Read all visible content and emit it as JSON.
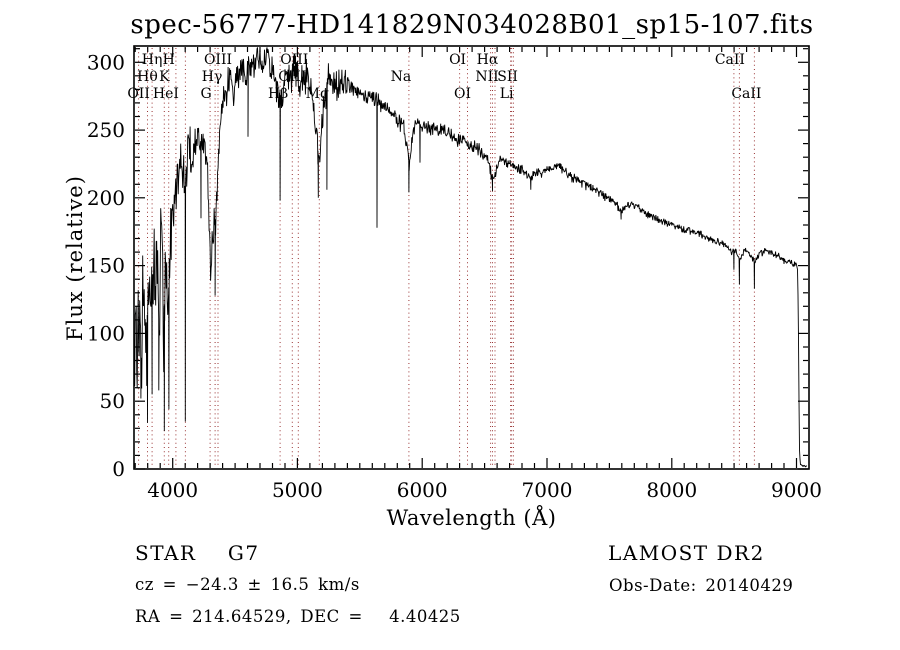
{
  "header": {
    "title": "spec-56777-HD141829N034028B01_sp15-107.fits"
  },
  "footer": {
    "object_type": "STAR",
    "subclass": "G7",
    "type_line": "STAR    G7",
    "cz_line": "cz = −24.3 ± 16.5 km/s",
    "radec_line": "RA = 214.64529, DEC =   4.40425",
    "survey_line": "LAMOST DR2",
    "obsdate_line": "Obs-Date: 20140429"
  },
  "chart_data": {
    "type": "line",
    "title": "spec-56777-HD141829N034028B01_sp15-107.fits",
    "xlabel": "Wavelength (Å)",
    "ylabel": "Flux (relative)",
    "xlim": [
      3690,
      9100
    ],
    "ylim": [
      0,
      312
    ],
    "x_major_ticks": [
      4000,
      5000,
      6000,
      7000,
      8000,
      9000
    ],
    "x_minor_step": 100,
    "y_major_ticks": [
      0,
      50,
      100,
      150,
      200,
      250,
      300
    ],
    "y_minor_step": 10,
    "grid": false,
    "legend": "none",
    "line_color": "#000000",
    "marker_color": "#993333",
    "label_rows_y": [
      64,
      81,
      98
    ],
    "spectral_lines": [
      {
        "label": "OII",
        "wl": 3727,
        "row": 3
      },
      {
        "label": "Hθ",
        "wl": 3798,
        "row": 2
      },
      {
        "label": "Hη",
        "wl": 3835,
        "row": 1
      },
      {
        "label": "K",
        "wl": 3933,
        "row": 2
      },
      {
        "label": "H",
        "wl": 3968,
        "row": 1
      },
      {
        "label": "HeI",
        "wl": 4026,
        "row": 3,
        "dx": -10
      },
      {
        "label": "",
        "wl": 4102,
        "row": 1
      },
      {
        "label": "G",
        "wl": 4300,
        "row": 3,
        "dx": -4
      },
      {
        "label": "Hγ",
        "wl": 4340,
        "row": 2,
        "dx": -3
      },
      {
        "label": "OIII",
        "wl": 4363,
        "row": 1
      },
      {
        "label": "Hβ",
        "wl": 4861,
        "row": 3,
        "dx": -2
      },
      {
        "label": "OIII",
        "wl": 4959,
        "row": 2
      },
      {
        "label": "OIII",
        "wl": 5007,
        "row": 1,
        "dx": -4
      },
      {
        "label": "Mg",
        "wl": 5175,
        "row": 3,
        "dx": -2
      },
      {
        "label": "Na",
        "wl": 5893,
        "row": 2,
        "dx": -8
      },
      {
        "label": "OI",
        "wl": 6300,
        "row": 1,
        "dx": -2
      },
      {
        "label": "OI",
        "wl": 6363,
        "row": 3,
        "dx": -5
      },
      {
        "label": "",
        "wl": 6548,
        "row": 2
      },
      {
        "label": "Hα",
        "wl": 6563,
        "row": 1,
        "dx": -5
      },
      {
        "label": "NII",
        "wl": 6583,
        "row": 2,
        "dx": -8
      },
      {
        "label": "Li",
        "wl": 6708,
        "row": 3,
        "dx": -4
      },
      {
        "label": "SII",
        "wl": 6716,
        "row": 2,
        "dx": -4
      },
      {
        "label": "",
        "wl": 6731,
        "row": 2
      },
      {
        "label": "CaII",
        "wl": 8498,
        "row": 1,
        "dx": -4
      },
      {
        "label": "",
        "wl": 8542,
        "row": 1
      },
      {
        "label": "CaII",
        "wl": 8662,
        "row": 3,
        "dx": -8
      }
    ],
    "envelope": [
      [
        3690,
        148
      ],
      [
        3698,
        70
      ],
      [
        3706,
        122
      ],
      [
        3714,
        55
      ],
      [
        3722,
        135
      ],
      [
        3730,
        85
      ],
      [
        3740,
        118
      ],
      [
        3750,
        68
      ],
      [
        3760,
        142
      ],
      [
        3770,
        95
      ],
      [
        3780,
        128
      ],
      [
        3790,
        82
      ],
      [
        3800,
        118
      ],
      [
        3810,
        148
      ],
      [
        3820,
        100
      ],
      [
        3830,
        138
      ],
      [
        3842,
        112
      ],
      [
        3852,
        158
      ],
      [
        3862,
        120
      ],
      [
        3872,
        168
      ],
      [
        3882,
        130
      ],
      [
        3892,
        100
      ],
      [
        3902,
        158
      ],
      [
        3912,
        178
      ],
      [
        3922,
        120
      ],
      [
        3930,
        92
      ],
      [
        3940,
        148
      ],
      [
        3950,
        128
      ],
      [
        3960,
        112
      ],
      [
        3972,
        140
      ],
      [
        3982,
        165
      ],
      [
        3992,
        198
      ],
      [
        4002,
        188
      ],
      [
        4020,
        205
      ],
      [
        4040,
        215
      ],
      [
        4060,
        228
      ],
      [
        4080,
        222
      ],
      [
        4100,
        208
      ],
      [
        4120,
        232
      ],
      [
        4140,
        238
      ],
      [
        4160,
        232
      ],
      [
        4180,
        242
      ],
      [
        4200,
        248
      ],
      [
        4220,
        240
      ],
      [
        4240,
        246
      ],
      [
        4260,
        238
      ],
      [
        4280,
        220
      ],
      [
        4295,
        175
      ],
      [
        4305,
        142
      ],
      [
        4315,
        165
      ],
      [
        4330,
        185
      ],
      [
        4345,
        175
      ],
      [
        4360,
        215
      ],
      [
        4380,
        252
      ],
      [
        4400,
        268
      ],
      [
        4430,
        280
      ],
      [
        4460,
        288
      ],
      [
        4490,
        282
      ],
      [
        4520,
        292
      ],
      [
        4550,
        295
      ],
      [
        4580,
        290
      ],
      [
        4610,
        298
      ],
      [
        4640,
        294
      ],
      [
        4670,
        305
      ],
      [
        4700,
        300
      ],
      [
        4730,
        298
      ],
      [
        4760,
        306
      ],
      [
        4790,
        298
      ],
      [
        4820,
        290
      ],
      [
        4850,
        276
      ],
      [
        4872,
        272
      ],
      [
        4900,
        288
      ],
      [
        4930,
        290
      ],
      [
        4960,
        288
      ],
      [
        4990,
        296
      ],
      [
        5010,
        292
      ],
      [
        5040,
        287
      ],
      [
        5070,
        289
      ],
      [
        5100,
        283
      ],
      [
        5130,
        272
      ],
      [
        5155,
        245
      ],
      [
        5175,
        224
      ],
      [
        5195,
        248
      ],
      [
        5220,
        272
      ],
      [
        5250,
        286
      ],
      [
        5280,
        281
      ],
      [
        5310,
        284
      ],
      [
        5340,
        280
      ],
      [
        5380,
        284
      ],
      [
        5420,
        281
      ],
      [
        5460,
        279
      ],
      [
        5500,
        277
      ],
      [
        5550,
        273
      ],
      [
        5600,
        274
      ],
      [
        5650,
        270
      ],
      [
        5700,
        267
      ],
      [
        5750,
        262
      ],
      [
        5800,
        258
      ],
      [
        5850,
        252
      ],
      [
        5880,
        236
      ],
      [
        5896,
        224
      ],
      [
        5912,
        240
      ],
      [
        5950,
        255
      ],
      [
        6000,
        254
      ],
      [
        6060,
        251
      ],
      [
        6120,
        249
      ],
      [
        6180,
        250
      ],
      [
        6240,
        246
      ],
      [
        6300,
        242
      ],
      [
        6360,
        240
      ],
      [
        6420,
        238
      ],
      [
        6480,
        233
      ],
      [
        6530,
        228
      ],
      [
        6563,
        214
      ],
      [
        6590,
        220
      ],
      [
        6620,
        228
      ],
      [
        6680,
        226
      ],
      [
        6740,
        223
      ],
      [
        6800,
        221
      ],
      [
        6860,
        214
      ],
      [
        6900,
        219
      ],
      [
        6960,
        217
      ],
      [
        7020,
        222
      ],
      [
        7080,
        224
      ],
      [
        7140,
        220
      ],
      [
        7200,
        215
      ],
      [
        7260,
        212
      ],
      [
        7320,
        209
      ],
      [
        7380,
        206
      ],
      [
        7440,
        203
      ],
      [
        7500,
        200
      ],
      [
        7560,
        195
      ],
      [
        7600,
        190
      ],
      [
        7650,
        195
      ],
      [
        7720,
        193
      ],
      [
        7790,
        189
      ],
      [
        7860,
        185
      ],
      [
        7930,
        182
      ],
      [
        8000,
        180
      ],
      [
        8070,
        177
      ],
      [
        8140,
        176
      ],
      [
        8210,
        174
      ],
      [
        8280,
        171
      ],
      [
        8350,
        168
      ],
      [
        8420,
        166
      ],
      [
        8480,
        160
      ],
      [
        8510,
        162
      ],
      [
        8545,
        154
      ],
      [
        8580,
        161
      ],
      [
        8625,
        158
      ],
      [
        8665,
        152
      ],
      [
        8700,
        158
      ],
      [
        8750,
        161
      ],
      [
        8800,
        159
      ],
      [
        8850,
        157
      ],
      [
        8900,
        154
      ],
      [
        8950,
        152
      ],
      [
        9000,
        150
      ],
      [
        9008,
        147
      ],
      [
        9014,
        120
      ],
      [
        9019,
        60
      ],
      [
        9024,
        14
      ],
      [
        9030,
        3
      ],
      [
        9085,
        2
      ]
    ],
    "absorption_spikes": [
      [
        3745,
        52
      ],
      [
        3798,
        34
      ],
      [
        3835,
        55
      ],
      [
        3889,
        58
      ],
      [
        3933,
        28
      ],
      [
        3970,
        44
      ],
      [
        4101,
        35
      ],
      [
        4227,
        185
      ],
      [
        4340,
        128
      ],
      [
        4604,
        245
      ],
      [
        4861,
        198
      ],
      [
        5167,
        200
      ],
      [
        5236,
        206
      ],
      [
        5638,
        178
      ],
      [
        5893,
        204
      ],
      [
        5982,
        226
      ],
      [
        6563,
        205
      ],
      [
        6870,
        206
      ],
      [
        7594,
        184
      ],
      [
        8498,
        147
      ],
      [
        8542,
        136
      ],
      [
        8662,
        133
      ]
    ],
    "noise": {
      "seed": 1234,
      "step": 4,
      "segments": [
        [
          3690,
          4000,
          36
        ],
        [
          4000,
          4300,
          20
        ],
        [
          4300,
          4420,
          17
        ],
        [
          4420,
          5400,
          16
        ],
        [
          5400,
          5900,
          7
        ],
        [
          5900,
          6600,
          6
        ],
        [
          6600,
          7600,
          4.5
        ],
        [
          7600,
          8450,
          3.5
        ],
        [
          8450,
          9015,
          3
        ],
        [
          9015,
          9100,
          1
        ]
      ]
    }
  }
}
